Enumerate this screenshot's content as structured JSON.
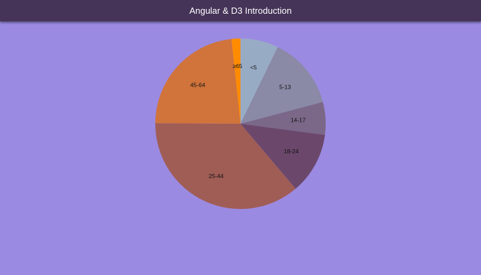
{
  "header": {
    "title": "Angular & D3 Introduction"
  },
  "colors": {
    "page_background": "#9b8ae2",
    "header_background": "#453358",
    "header_text": "#ffffff"
  },
  "chart_data": {
    "type": "pie",
    "title": "",
    "start_angle_deg": 0,
    "direction": "clockwise-from-12-oclock",
    "legend": "none",
    "slices": [
      {
        "label": "<5",
        "value": 7.2,
        "color": "#98abc5"
      },
      {
        "label": "5-13",
        "value": 13.7,
        "color": "#8a89a6"
      },
      {
        "label": "14-17",
        "value": 6.2,
        "color": "#7b6888"
      },
      {
        "label": "18-24",
        "value": 11.7,
        "color": "#6b486b"
      },
      {
        "label": "25-44",
        "value": 36.3,
        "color": "#a05d56"
      },
      {
        "label": "45-64",
        "value": 23.2,
        "color": "#d0743c"
      },
      {
        "label": "≥65",
        "value": 1.7,
        "color": "#ff8c00"
      }
    ]
  }
}
